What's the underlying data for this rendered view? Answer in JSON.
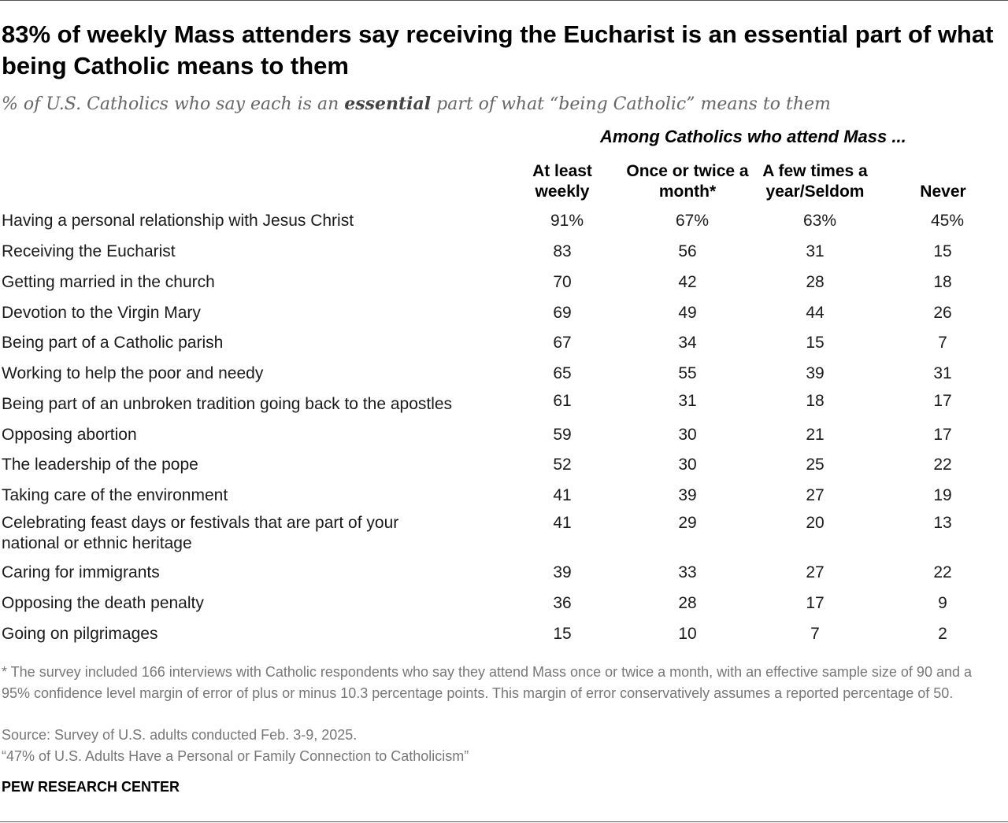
{
  "title": "83% of weekly Mass attenders say receiving the Eucharist is an essential part of what being Catholic means to them",
  "subtitle": {
    "before": "% of U.S. Catholics who say each is an ",
    "emphasis": "essential",
    "after": " part of what “being Catholic” means to them"
  },
  "chart_data": {
    "type": "table",
    "spanner": "Among Catholics who attend Mass ...",
    "columns": [
      "At least weekly",
      "Once or twice a month*",
      "A few times a year/Seldom",
      "Never"
    ],
    "rows": [
      {
        "label": "Having a personal relationship with Jesus Christ",
        "values": [
          "91%",
          "67%",
          "63%",
          "45%"
        ]
      },
      {
        "label": "Receiving the Eucharist",
        "values": [
          "83",
          "56",
          "31",
          "15"
        ]
      },
      {
        "label": "Getting married in the church",
        "values": [
          "70",
          "42",
          "28",
          "18"
        ]
      },
      {
        "label": "Devotion to the Virgin Mary",
        "values": [
          "69",
          "49",
          "44",
          "26"
        ]
      },
      {
        "label": "Being part of a Catholic parish",
        "values": [
          "67",
          "34",
          "15",
          "7"
        ]
      },
      {
        "label": "Working to help the poor and needy",
        "values": [
          "65",
          "55",
          "39",
          "31"
        ]
      },
      {
        "label": "Being part of an unbroken tradition going back to the apostles",
        "values": [
          "61",
          "31",
          "18",
          "17"
        ]
      },
      {
        "label": "Opposing abortion",
        "values": [
          "59",
          "30",
          "21",
          "17"
        ]
      },
      {
        "label": "The leadership of the pope",
        "values": [
          "52",
          "30",
          "25",
          "22"
        ]
      },
      {
        "label": "Taking care of the environment",
        "values": [
          "41",
          "39",
          "27",
          "19"
        ]
      },
      {
        "label": "Celebrating feast days or festivals that are part of your national or ethnic heritage",
        "values": [
          "41",
          "29",
          "20",
          "13"
        ]
      },
      {
        "label": "Caring for immigrants",
        "values": [
          "39",
          "33",
          "27",
          "22"
        ]
      },
      {
        "label": "Opposing the death penalty",
        "values": [
          "36",
          "28",
          "17",
          "9"
        ]
      },
      {
        "label": "Going on pilgrimages",
        "values": [
          "15",
          "10",
          "7",
          "2"
        ]
      }
    ]
  },
  "notes": {
    "footnote": "* The survey included 166 interviews with Catholic respondents who say they attend Mass once or twice a month, with an effective sample size of 90 and a 95% confidence level margin of error of plus or minus 10.3 percentage points. This margin of error conservatively assumes a reported percentage of 50.",
    "source": "Source: Survey of U.S. adults conducted Feb. 3-9, 2025.",
    "report": "“47% of U.S. Adults Have a Personal or Family Connection to Catholicism”"
  },
  "brand": "PEW RESEARCH CENTER",
  "colors": {
    "text": "#1a1a1a",
    "muted": "#777777",
    "rule": "#555555"
  }
}
